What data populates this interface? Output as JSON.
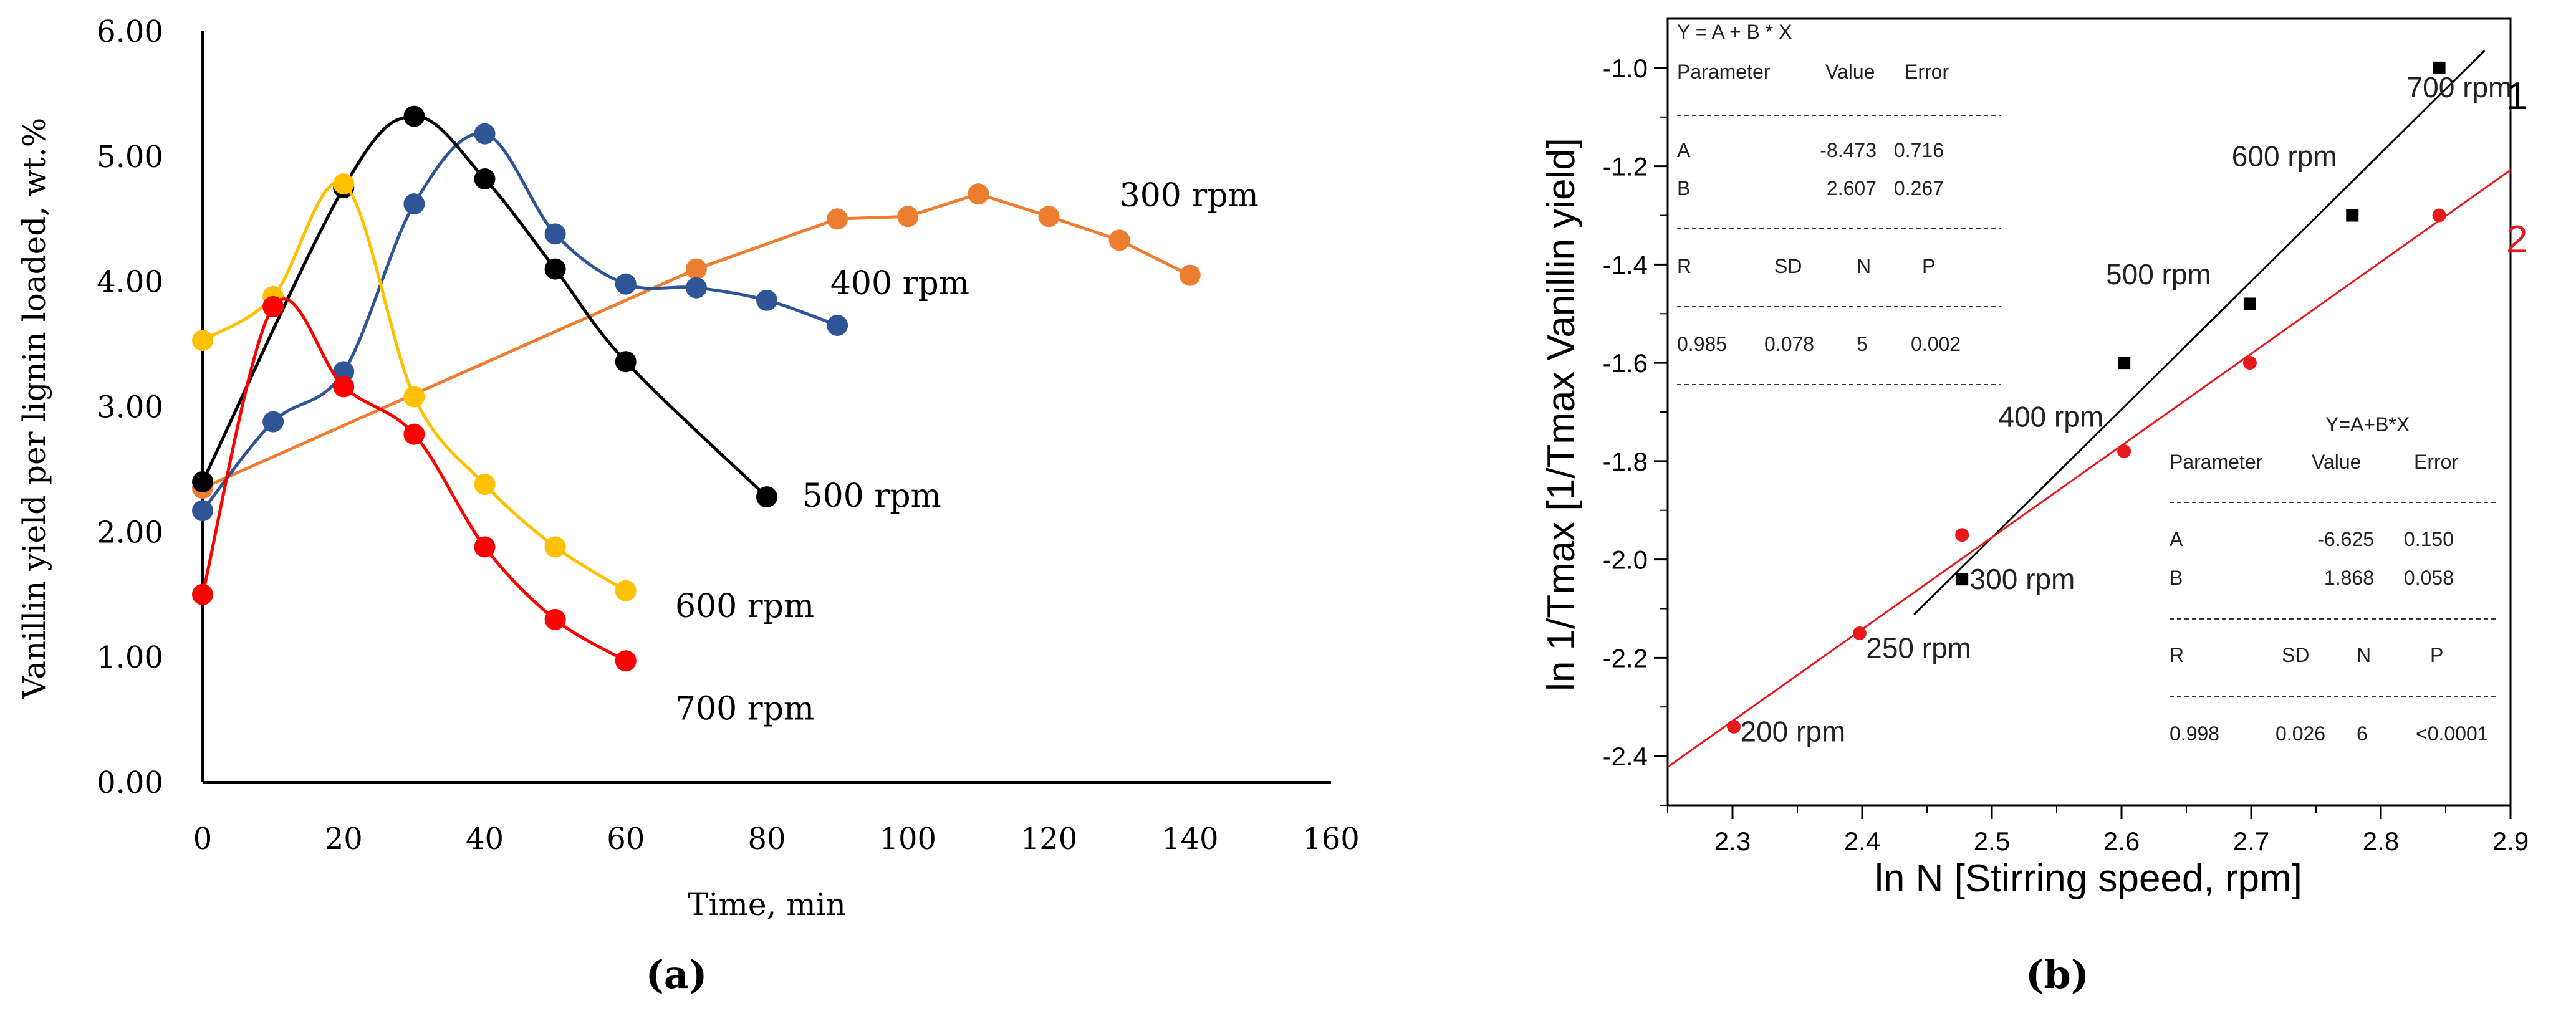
{
  "chart_data": [
    {
      "panel": "a",
      "caption": "(a)",
      "type": "line",
      "title": "",
      "xlabel": "Time, min",
      "ylabel": "Vanillin yield per lignin loaded, wt.%",
      "xlim": [
        0,
        160
      ],
      "ylim": [
        0,
        6
      ],
      "xticks": [
        "0",
        "20",
        "40",
        "60",
        "80",
        "100",
        "120",
        "140",
        "160"
      ],
      "yticks": [
        "0.00",
        "1.00",
        "2.00",
        "3.00",
        "4.00",
        "5.00",
        "6.00"
      ],
      "series": [
        {
          "name": "300 rpm",
          "color": "#ED7D31",
          "smooth": false,
          "x": [
            0,
            70,
            90,
            100,
            110,
            120,
            130,
            140
          ],
          "y": [
            2.35,
            4.1,
            4.5,
            4.52,
            4.7,
            4.52,
            4.33,
            4.05
          ]
        },
        {
          "name": "400 rpm",
          "color": "#2F5597",
          "smooth": true,
          "x": [
            0,
            10,
            20,
            30,
            40,
            50,
            60,
            70,
            80,
            90
          ],
          "y": [
            2.17,
            2.88,
            3.28,
            4.62,
            5.18,
            4.38,
            3.98,
            3.95,
            3.85,
            3.65
          ]
        },
        {
          "name": "500 rpm",
          "color": "#000000",
          "smooth": true,
          "x": [
            0,
            20,
            30,
            40,
            50,
            60,
            80
          ],
          "y": [
            2.4,
            4.75,
            5.32,
            4.82,
            4.1,
            3.36,
            2.28
          ]
        },
        {
          "name": "600 rpm",
          "color": "#FFC000",
          "smooth": true,
          "x": [
            0,
            10,
            20,
            30,
            40,
            50,
            60
          ],
          "y": [
            3.53,
            3.88,
            4.78,
            3.08,
            2.38,
            1.88,
            1.53
          ]
        },
        {
          "name": "700 rpm",
          "color": "#FF0000",
          "smooth": true,
          "x": [
            0,
            10,
            20,
            30,
            40,
            50,
            60
          ],
          "y": [
            1.5,
            3.8,
            3.16,
            2.78,
            1.88,
            1.3,
            0.97
          ]
        }
      ],
      "annotations": [
        {
          "text": "300 rpm",
          "x": 130,
          "y": 4.6
        },
        {
          "text": "400 rpm",
          "x": 89,
          "y": 3.9
        },
        {
          "text": "500 rpm",
          "x": 85,
          "y": 2.2
        },
        {
          "text": "600 rpm",
          "x": 67,
          "y": 1.32
        },
        {
          "text": "700 rpm",
          "x": 67,
          "y": 0.5
        }
      ]
    },
    {
      "panel": "b",
      "caption": "(b)",
      "type": "scatter",
      "title": "",
      "xlabel": "ln N [Stirring speed, rpm]",
      "ylabel": "ln 1/Tmax [1/Tmax Vanillin yield]",
      "xlim": [
        2.25,
        2.9
      ],
      "ylim": [
        -2.5,
        -0.9
      ],
      "xticks": [
        "2.3",
        "2.4",
        "2.5",
        "2.6",
        "2.7",
        "2.8",
        "2.9"
      ],
      "yticks": [
        "-2.4",
        "-2.2",
        "-2.0",
        "-1.8",
        "-1.6",
        "-1.4",
        "-1.2",
        "-1.0"
      ],
      "series": [
        {
          "name": "1",
          "color": "#000000",
          "marker": "square",
          "x": [
            2.477,
            2.602,
            2.699,
            2.778,
            2.845
          ],
          "y": [
            -2.04,
            -1.6,
            -1.48,
            -1.3,
            -1.0
          ],
          "fit": {
            "A": -8.473,
            "B": 2.607,
            "x_range": [
              2.44,
              2.88
            ]
          }
        },
        {
          "name": "2",
          "color": "#E8191A",
          "marker": "circle",
          "x": [
            2.301,
            2.398,
            2.477,
            2.602,
            2.699,
            2.845
          ],
          "y": [
            -2.34,
            -2.15,
            -1.95,
            -1.78,
            -1.6,
            -1.3
          ],
          "fit": {
            "A": -6.625,
            "B": 1.868,
            "x_range": [
              2.25,
              2.9
            ]
          }
        }
      ],
      "point_labels": [
        {
          "text": "200 rpm",
          "x": 2.306,
          "y": -2.37
        },
        {
          "text": "250 rpm",
          "x": 2.403,
          "y": -2.2
        },
        {
          "text": "300 rpm",
          "x": 2.483,
          "y": -2.06
        },
        {
          "text": "400 rpm",
          "x": 2.505,
          "y": -1.73
        },
        {
          "text": "500 rpm",
          "x": 2.588,
          "y": -1.44
        },
        {
          "text": "600 rpm",
          "x": 2.685,
          "y": -1.2
        },
        {
          "text": "700 rpm",
          "x": 2.82,
          "y": -1.06
        }
      ],
      "fit_tables": [
        {
          "series": "1",
          "equation": "Y = A + B * X",
          "param_header": [
            "Parameter",
            "Value",
            "Error"
          ],
          "rows": [
            [
              "A",
              "-8.473",
              "0.716"
            ],
            [
              "B",
              "2.607",
              "0.267"
            ]
          ],
          "stat_header": [
            "R",
            "SD",
            "N",
            "P"
          ],
          "stats": [
            "0.985",
            "0.078",
            "5",
            "0.002"
          ]
        },
        {
          "series": "2",
          "equation": "Y=A+B*X",
          "param_header": [
            "Parameter",
            "Value",
            "Error"
          ],
          "rows": [
            [
              "A",
              "-6.625",
              "0.150"
            ],
            [
              "B",
              "1.868",
              "0.058"
            ]
          ],
          "stat_header": [
            "R",
            "SD",
            "N",
            "P"
          ],
          "stats": [
            "0.998",
            "0.026",
            "6",
            "<0.0001"
          ]
        }
      ]
    }
  ]
}
